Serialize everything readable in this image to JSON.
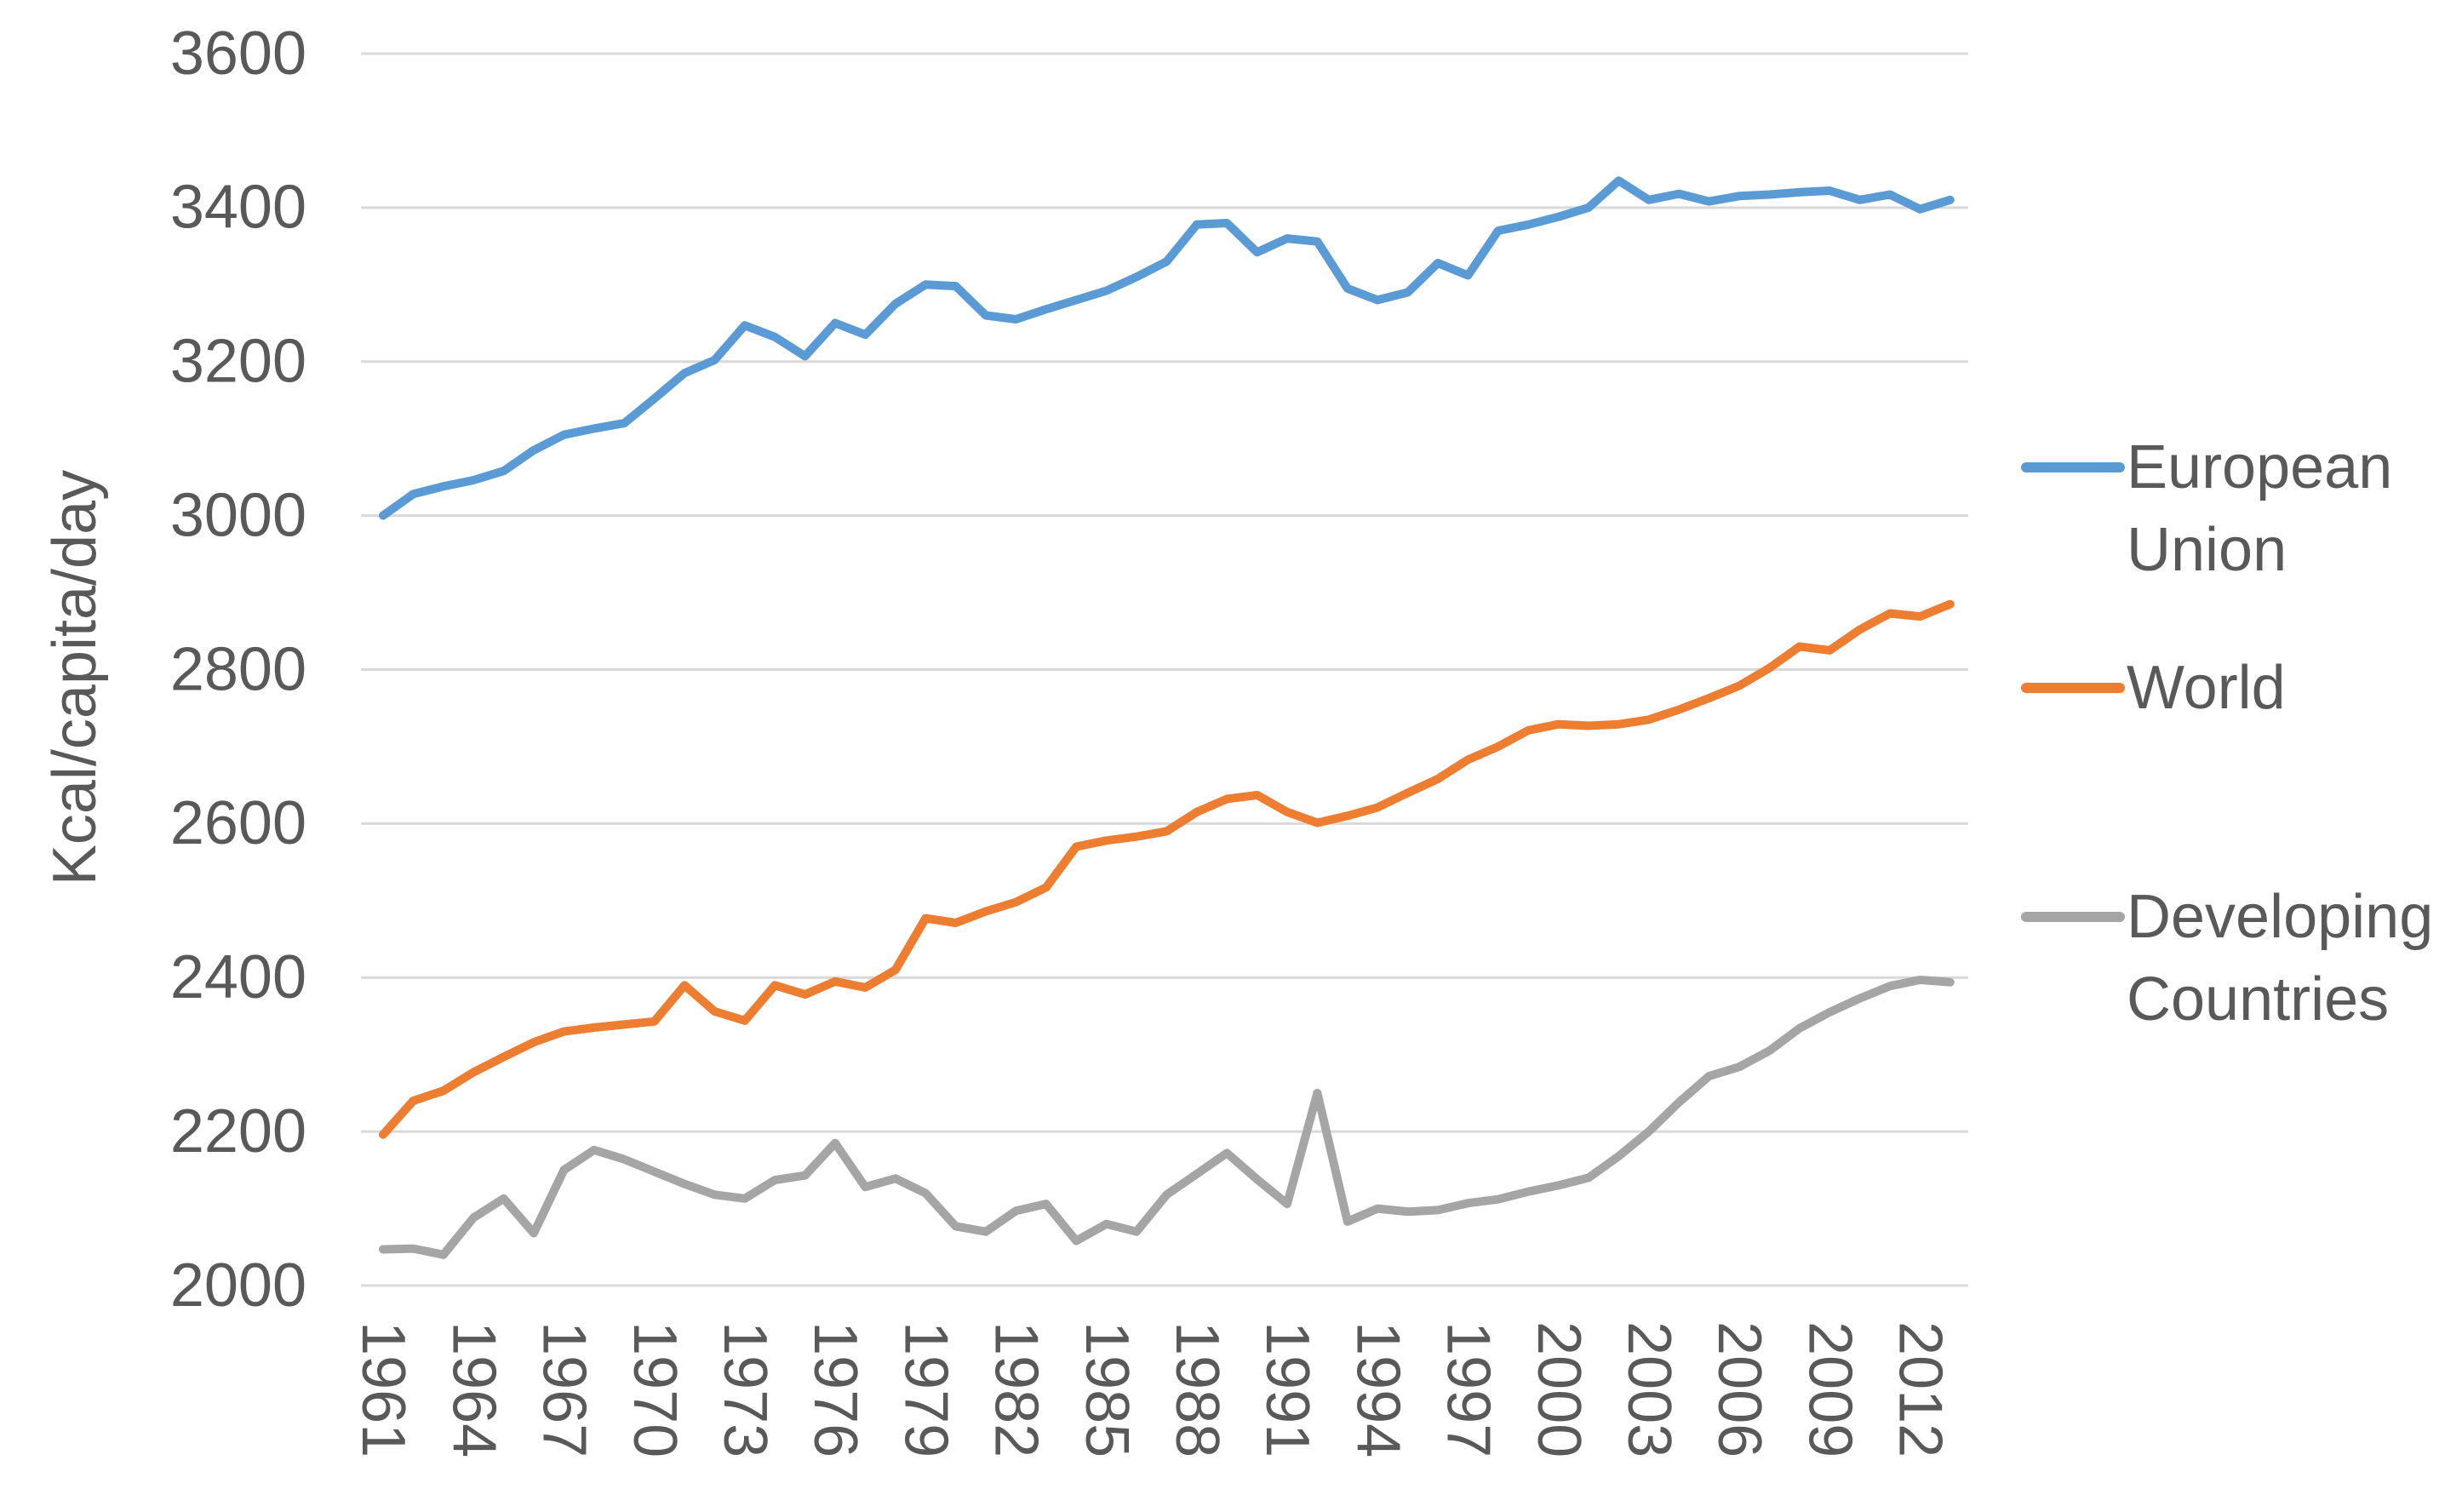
{
  "chart_data": {
    "type": "line",
    "title": "",
    "xlabel": "",
    "ylabel": "Kcal/capita/day",
    "ylim": [
      2000,
      3600
    ],
    "ytick_step": 200,
    "yticks": [
      3600,
      3400,
      3200,
      3000,
      2800,
      2600,
      2400,
      2200,
      2000
    ],
    "xticks": [
      1961,
      1964,
      1967,
      1970,
      1973,
      1976,
      1979,
      1982,
      1985,
      1988,
      1991,
      1994,
      1997,
      2000,
      2003,
      2006,
      2009,
      2012
    ],
    "grid": "horizontal",
    "legend_position": "right",
    "text_color": "#595959",
    "gridline_color": "#D9D9D9",
    "years": [
      1961,
      1962,
      1963,
      1964,
      1965,
      1966,
      1967,
      1968,
      1969,
      1970,
      1971,
      1972,
      1973,
      1974,
      1975,
      1976,
      1977,
      1978,
      1979,
      1980,
      1981,
      1982,
      1983,
      1984,
      1985,
      1986,
      1987,
      1988,
      1989,
      1990,
      1991,
      1992,
      1993,
      1994,
      1995,
      1996,
      1997,
      1998,
      1999,
      2000,
      2001,
      2002,
      2003,
      2004,
      2005,
      2006,
      2007,
      2008,
      2009,
      2010,
      2011,
      2012,
      2013
    ],
    "series": [
      {
        "name": "European Union",
        "label_lines": [
          "European",
          "Union"
        ],
        "color": "#5B9BD5",
        "values": [
          3000,
          3028,
          3038,
          3046,
          3058,
          3085,
          3105,
          3113,
          3120,
          3152,
          3185,
          3202,
          3247,
          3232,
          3207,
          3250,
          3235,
          3275,
          3300,
          3298,
          3260,
          3255,
          3268,
          3280,
          3292,
          3310,
          3330,
          3378,
          3380,
          3342,
          3360,
          3356,
          3295,
          3280,
          3290,
          3328,
          3312,
          3370,
          3378,
          3388,
          3400,
          3435,
          3410,
          3418,
          3408,
          3415,
          3417,
          3420,
          3422,
          3410,
          3417,
          3398,
          3410
        ]
      },
      {
        "name": "World",
        "label_lines": [
          "World"
        ],
        "color": "#ED7D31",
        "values": [
          2196,
          2240,
          2253,
          2277,
          2297,
          2316,
          2330,
          2335,
          2339,
          2343,
          2390,
          2356,
          2344,
          2390,
          2378,
          2395,
          2387,
          2410,
          2477,
          2471,
          2486,
          2498,
          2517,
          2570,
          2578,
          2583,
          2590,
          2615,
          2632,
          2637,
          2615,
          2601,
          2610,
          2621,
          2640,
          2658,
          2683,
          2700,
          2721,
          2729,
          2727,
          2729,
          2735,
          2748,
          2763,
          2779,
          2802,
          2830,
          2825,
          2852,
          2873,
          2869,
          2885
        ]
      },
      {
        "name": "Developing Countries",
        "label_lines": [
          "Developing",
          "Countries"
        ],
        "color": "#A5A5A5",
        "values": [
          2047,
          2048,
          2040,
          2088,
          2113,
          2068,
          2150,
          2176,
          2164,
          2148,
          2132,
          2118,
          2113,
          2137,
          2143,
          2185,
          2128,
          2139,
          2120,
          2077,
          2070,
          2097,
          2106,
          2058,
          2080,
          2070,
          2118,
          2145,
          2172,
          2138,
          2106,
          2250,
          2083,
          2100,
          2096,
          2098,
          2107,
          2112,
          2122,
          2130,
          2140,
          2168,
          2200,
          2238,
          2272,
          2284,
          2305,
          2334,
          2355,
          2373,
          2389,
          2397,
          2394
        ]
      }
    ]
  }
}
